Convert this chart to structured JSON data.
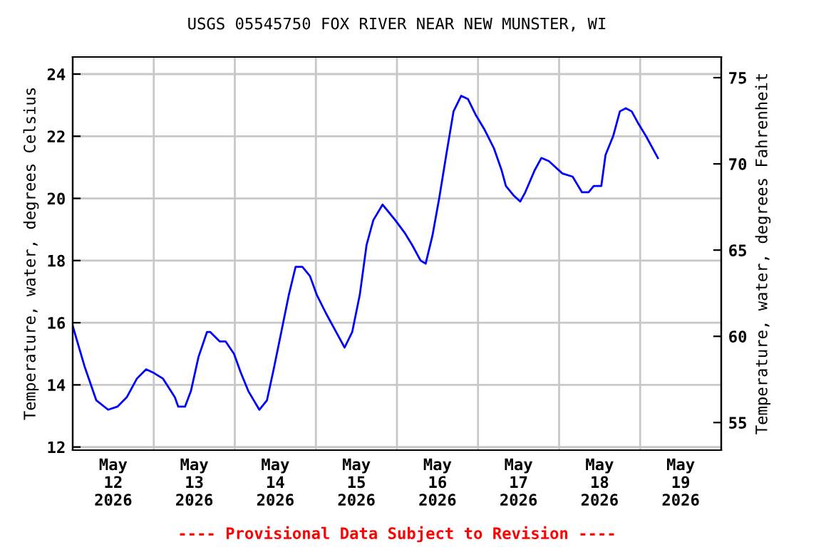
{
  "chart_data": {
    "type": "line",
    "title": "USGS 05545750 FOX RIVER NEAR NEW MUNSTER, WI",
    "ylabel": "Temperature, water, degrees Celsius",
    "y2label": "Temperature, water, degrees Fahrenheit",
    "annotations": [
      "---- Provisional Data Subject to Revision ----"
    ],
    "x": [
      "2026-05-12T00:00",
      "2026-05-12T03:30",
      "2026-05-12T07:00",
      "2026-05-12T10:30",
      "2026-05-12T13:15",
      "2026-05-12T16:00",
      "2026-05-12T19:00",
      "2026-05-12T21:45",
      "2026-05-12T23:45",
      "2026-05-13T02:45",
      "2026-05-13T06:15",
      "2026-05-13T07:15",
      "2026-05-13T09:15",
      "2026-05-13T11:00",
      "2026-05-13T13:15",
      "2026-05-13T15:45",
      "2026-05-13T16:45",
      "2026-05-13T19:30",
      "2026-05-13T21:15",
      "2026-05-13T23:45",
      "2026-05-14T01:45",
      "2026-05-14T04:00",
      "2026-05-14T07:15",
      "2026-05-14T09:30",
      "2026-05-14T11:30",
      "2026-05-14T13:45",
      "2026-05-14T16:00",
      "2026-05-14T18:00",
      "2026-05-14T20:00",
      "2026-05-14T22:15",
      "2026-05-15T00:15",
      "2026-05-15T03:00",
      "2026-05-15T06:00",
      "2026-05-15T08:30",
      "2026-05-15T10:45",
      "2026-05-15T13:00",
      "2026-05-15T15:00",
      "2026-05-15T17:00",
      "2026-05-15T19:45",
      "2026-05-15T21:15",
      "2026-05-15T23:30",
      "2026-05-16T02:15",
      "2026-05-16T04:30",
      "2026-05-16T07:00",
      "2026-05-16T08:30",
      "2026-05-16T10:30",
      "2026-05-16T12:30",
      "2026-05-16T14:45",
      "2026-05-16T16:45",
      "2026-05-16T19:00",
      "2026-05-16T21:00",
      "2026-05-16T23:15",
      "2026-05-17T02:00",
      "2026-05-17T04:45",
      "2026-05-17T07:00",
      "2026-05-17T08:15",
      "2026-05-17T10:30",
      "2026-05-17T12:30",
      "2026-05-17T14:00",
      "2026-05-17T16:45",
      "2026-05-17T18:45",
      "2026-05-17T21:00",
      "2026-05-17T23:00",
      "2026-05-18T01:00",
      "2026-05-18T04:00",
      "2026-05-18T06:45",
      "2026-05-18T08:45",
      "2026-05-18T10:15",
      "2026-05-18T12:30",
      "2026-05-18T13:45",
      "2026-05-18T16:00",
      "2026-05-18T18:00",
      "2026-05-18T19:45",
      "2026-05-18T21:30",
      "2026-05-18T23:30",
      "2026-05-19T01:45",
      "2026-05-19T05:15"
    ],
    "series": [
      {
        "color": "#0000ff",
        "values": [
          15.9,
          14.6,
          13.5,
          13.2,
          13.3,
          13.6,
          14.2,
          14.5,
          14.4,
          14.2,
          13.6,
          13.3,
          13.3,
          13.8,
          14.9,
          15.7,
          15.7,
          15.4,
          15.4,
          15.0,
          14.4,
          13.8,
          13.2,
          13.5,
          14.5,
          15.7,
          16.9,
          17.8,
          17.8,
          17.5,
          16.9,
          16.3,
          15.7,
          15.2,
          15.7,
          16.9,
          18.5,
          19.3,
          19.8,
          19.6,
          19.3,
          18.9,
          18.5,
          18.0,
          17.9,
          18.8,
          20.0,
          21.5,
          22.8,
          23.3,
          23.2,
          22.7,
          22.2,
          21.6,
          20.9,
          20.4,
          20.1,
          19.9,
          20.2,
          20.9,
          21.3,
          21.2,
          21.0,
          20.8,
          20.7,
          20.2,
          20.2,
          20.4,
          20.4,
          21.4,
          22.0,
          22.8,
          22.9,
          22.8,
          22.4,
          22.0,
          21.3
        ]
      }
    ],
    "xlim": [
      "2026-05-12T00:00",
      "2026-05-20T00:00"
    ],
    "xticks": [
      {
        "value": "2026-05-12T12:00",
        "label": "May\n12\n2026"
      },
      {
        "value": "2026-05-13T00:00",
        "label": null
      },
      {
        "value": "2026-05-13T12:00",
        "label": "May\n13\n2026"
      },
      {
        "value": "2026-05-14T00:00",
        "label": null
      },
      {
        "value": "2026-05-14T12:00",
        "label": "May\n14\n2026"
      },
      {
        "value": "2026-05-15T00:00",
        "label": null
      },
      {
        "value": "2026-05-15T12:00",
        "label": "May\n15\n2026"
      },
      {
        "value": "2026-05-16T00:00",
        "label": null
      },
      {
        "value": "2026-05-16T12:00",
        "label": "May\n16\n2026"
      },
      {
        "value": "2026-05-17T00:00",
        "label": null
      },
      {
        "value": "2026-05-17T12:00",
        "label": "May\n17\n2026"
      },
      {
        "value": "2026-05-18T00:00",
        "label": null
      },
      {
        "value": "2026-05-18T12:00",
        "label": "May\n18\n2026"
      },
      {
        "value": "2026-05-19T00:00",
        "label": null
      },
      {
        "value": "2026-05-19T12:00",
        "label": "May\n19\n2026"
      }
    ],
    "ylim": [
      11.9,
      24.55
    ],
    "yticks": [
      12,
      14,
      16,
      18,
      20,
      22,
      24
    ],
    "y2lim": [
      53.4,
      76.2
    ],
    "y2ticks": [
      55,
      60,
      65,
      70,
      75
    ],
    "grid": true,
    "legend": false,
    "marker": "none",
    "line_style": "solid"
  }
}
